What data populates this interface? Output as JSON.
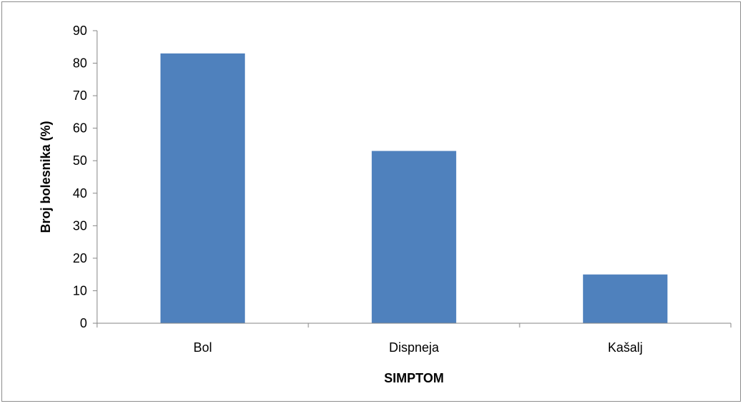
{
  "chart_data": {
    "type": "bar",
    "title": "",
    "xlabel": "SIMPTOM",
    "ylabel": "Broj bolesnika (%)",
    "categories": [
      "Bol",
      "Dispneja",
      "Kašalj"
    ],
    "values": [
      83,
      53,
      15
    ],
    "ylim": [
      0,
      90
    ],
    "yticks": [
      0,
      10,
      20,
      30,
      40,
      50,
      60,
      70,
      80,
      90
    ],
    "grid": false,
    "legend": "none",
    "colors": {
      "bar": "#4f81bd",
      "axis": "#868686",
      "text": "#000000"
    }
  }
}
